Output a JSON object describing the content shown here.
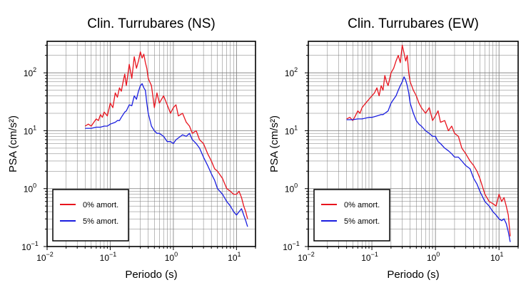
{
  "chart_data": [
    {
      "type": "line",
      "title": "Clin. Turrubares (NS)",
      "xlabel": "Periodo (s)",
      "ylabel": "PSA (cm/s²)",
      "xscale": "log",
      "yscale": "log",
      "xlim": [
        0.01,
        20
      ],
      "ylim": [
        0.1,
        350
      ],
      "xticks": [
        {
          "base": "10",
          "exp": "−2"
        },
        {
          "base": "10",
          "exp": "−1"
        },
        {
          "base": "10",
          "exp": "0"
        },
        {
          "base": "10",
          "exp": "1"
        }
      ],
      "yticks": [
        {
          "base": "10",
          "exp": "−1"
        },
        {
          "base": "10",
          "exp": "0"
        },
        {
          "base": "10",
          "exp": "1"
        },
        {
          "base": "10",
          "exp": "2"
        }
      ],
      "grid": true,
      "legend_position": "bottom-left",
      "series": [
        {
          "name": "0% amort.",
          "color": "#e8141e",
          "x": [
            0.04,
            0.045,
            0.05,
            0.055,
            0.06,
            0.065,
            0.07,
            0.075,
            0.08,
            0.09,
            0.1,
            0.11,
            0.12,
            0.13,
            0.14,
            0.15,
            0.16,
            0.17,
            0.18,
            0.2,
            0.22,
            0.24,
            0.26,
            0.28,
            0.3,
            0.32,
            0.34,
            0.36,
            0.38,
            0.4,
            0.45,
            0.5,
            0.55,
            0.6,
            0.7,
            0.8,
            0.9,
            1.0,
            1.1,
            1.2,
            1.4,
            1.6,
            1.8,
            2.0,
            2.3,
            2.6,
            3.0,
            3.5,
            4.0,
            4.5,
            5.0,
            6.0,
            7.0,
            8.0,
            9.0,
            10.0,
            11.0,
            12.0,
            13.0,
            14.0,
            15.0
          ],
          "y": [
            12,
            13,
            12,
            14,
            16,
            15,
            19,
            17,
            21,
            18,
            30,
            25,
            45,
            38,
            55,
            48,
            70,
            95,
            60,
            140,
            80,
            190,
            120,
            160,
            230,
            180,
            210,
            150,
            120,
            80,
            60,
            25,
            45,
            30,
            40,
            28,
            20,
            25,
            28,
            18,
            20,
            14,
            12,
            9,
            10,
            7,
            6,
            4,
            3,
            2.2,
            2.0,
            1.5,
            1.0,
            0.9,
            0.8,
            0.8,
            0.9,
            0.7,
            0.5,
            0.4,
            0.3
          ]
        },
        {
          "name": "5% amort.",
          "color": "#1a1ee0",
          "x": [
            0.04,
            0.05,
            0.06,
            0.07,
            0.08,
            0.09,
            0.1,
            0.11,
            0.12,
            0.13,
            0.14,
            0.15,
            0.16,
            0.17,
            0.18,
            0.2,
            0.22,
            0.24,
            0.26,
            0.28,
            0.3,
            0.32,
            0.34,
            0.36,
            0.38,
            0.4,
            0.45,
            0.5,
            0.55,
            0.6,
            0.7,
            0.8,
            0.9,
            1.0,
            1.1,
            1.2,
            1.4,
            1.6,
            1.8,
            2.0,
            2.3,
            2.6,
            3.0,
            3.5,
            4.0,
            4.5,
            5.0,
            6.0,
            7.0,
            8.0,
            9.0,
            10.0,
            11.0,
            12.0,
            13.0,
            14.0,
            15.0
          ],
          "y": [
            11,
            11,
            11.5,
            11.5,
            12,
            12,
            13,
            13.5,
            14,
            15,
            15,
            17,
            19,
            21,
            22,
            28,
            27,
            40,
            35,
            48,
            60,
            65,
            55,
            50,
            30,
            20,
            12,
            10,
            9,
            9,
            8,
            6.5,
            6.5,
            6,
            7,
            7.5,
            8.5,
            8,
            9,
            7,
            6,
            5,
            3.5,
            2.5,
            1.8,
            1.4,
            1.0,
            0.8,
            0.6,
            0.5,
            0.4,
            0.35,
            0.4,
            0.45,
            0.35,
            0.28,
            0.22
          ]
        }
      ]
    },
    {
      "type": "line",
      "title": "Clin. Turrubares (EW)",
      "xlabel": "Periodo (s)",
      "ylabel": "PSA (cm/s²)",
      "xscale": "log",
      "yscale": "log",
      "xlim": [
        0.01,
        20
      ],
      "ylim": [
        0.1,
        350
      ],
      "xticks": [
        {
          "base": "10",
          "exp": "−2"
        },
        {
          "base": "10",
          "exp": "−1"
        },
        {
          "base": "10",
          "exp": "0"
        },
        {
          "base": "10",
          "exp": "1"
        }
      ],
      "yticks": [
        {
          "base": "10",
          "exp": "−1"
        },
        {
          "base": "10",
          "exp": "0"
        },
        {
          "base": "10",
          "exp": "1"
        },
        {
          "base": "10",
          "exp": "2"
        }
      ],
      "grid": true,
      "legend_position": "bottom-left",
      "series": [
        {
          "name": "0% amort.",
          "color": "#e8141e",
          "x": [
            0.04,
            0.045,
            0.05,
            0.055,
            0.06,
            0.065,
            0.07,
            0.08,
            0.09,
            0.1,
            0.11,
            0.12,
            0.13,
            0.14,
            0.15,
            0.16,
            0.17,
            0.18,
            0.2,
            0.22,
            0.24,
            0.26,
            0.28,
            0.3,
            0.32,
            0.34,
            0.36,
            0.38,
            0.4,
            0.45,
            0.5,
            0.55,
            0.6,
            0.7,
            0.8,
            0.9,
            1.0,
            1.1,
            1.2,
            1.4,
            1.6,
            1.8,
            2.0,
            2.3,
            2.6,
            3.0,
            3.5,
            4.0,
            4.5,
            5.0,
            6.0,
            7.0,
            8.0,
            9.0,
            10.0,
            11.0,
            12.0,
            13.0,
            14.0,
            15.0
          ],
          "y": [
            16,
            17,
            15,
            18,
            22,
            20,
            25,
            30,
            35,
            40,
            45,
            55,
            40,
            60,
            50,
            90,
            70,
            60,
            100,
            120,
            160,
            200,
            150,
            300,
            220,
            160,
            200,
            100,
            70,
            50,
            40,
            30,
            25,
            20,
            25,
            15,
            18,
            22,
            14,
            15,
            10,
            12,
            9,
            8,
            5,
            4,
            3,
            2.5,
            2.0,
            1.5,
            0.8,
            0.6,
            0.55,
            0.5,
            0.8,
            0.6,
            0.7,
            0.5,
            0.35,
            0.15
          ]
        },
        {
          "name": "5% amort.",
          "color": "#1a1ee0",
          "x": [
            0.04,
            0.05,
            0.06,
            0.07,
            0.08,
            0.09,
            0.1,
            0.11,
            0.12,
            0.13,
            0.14,
            0.15,
            0.16,
            0.17,
            0.18,
            0.2,
            0.22,
            0.24,
            0.26,
            0.28,
            0.3,
            0.32,
            0.34,
            0.36,
            0.38,
            0.4,
            0.45,
            0.5,
            0.55,
            0.6,
            0.7,
            0.8,
            0.9,
            1.0,
            1.1,
            1.2,
            1.4,
            1.6,
            1.8,
            2.0,
            2.3,
            2.6,
            3.0,
            3.5,
            4.0,
            4.5,
            5.0,
            6.0,
            7.0,
            8.0,
            9.0,
            10.0,
            11.0,
            12.0,
            13.0,
            14.0,
            15.0
          ],
          "y": [
            15.5,
            15.5,
            16,
            16,
            16.5,
            17,
            17,
            17.5,
            18,
            18.5,
            19,
            19,
            20,
            21,
            22,
            30,
            35,
            40,
            50,
            60,
            70,
            85,
            75,
            60,
            45,
            30,
            20,
            15,
            13,
            12,
            10,
            9,
            8,
            8,
            6.5,
            6,
            5,
            4.5,
            4,
            3.5,
            3.5,
            3,
            2.5,
            2.2,
            1.5,
            1.2,
            0.9,
            0.6,
            0.5,
            0.4,
            0.35,
            0.3,
            0.28,
            0.3,
            0.25,
            0.18,
            0.12
          ]
        }
      ]
    }
  ]
}
